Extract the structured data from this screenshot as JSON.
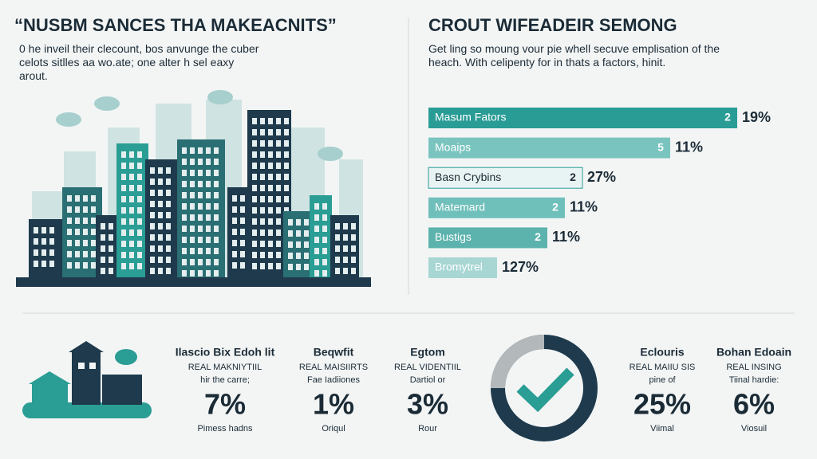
{
  "left": {
    "title": "“NUSBM SANCES THA MAKEACNITS”",
    "description": "0 he inveil their clecount, bos anvunge the cuber celots sitlles aa wo.ate; one alter h sel eaxy arout."
  },
  "right": {
    "title": "CROUT WIFEADEIR SEMONG",
    "description": "Get ling so moung vour pie whell secuve emplisation of the heach. With celipenty for in thats a factors, hinit.",
    "bars": [
      {
        "label": "Masum Fators",
        "badge": "2",
        "value": "19%"
      },
      {
        "label": "Moaips",
        "badge": "5",
        "value": "11%"
      },
      {
        "label": "Basn Crybins",
        "badge": "2",
        "value": "27%"
      },
      {
        "label": "Matemard",
        "badge": "2",
        "value": "11%"
      },
      {
        "label": "Bustigs",
        "badge": "2",
        "value": "11%"
      },
      {
        "label": "Bromytrel",
        "value": "127%"
      }
    ]
  },
  "stats": [
    {
      "title": "Ilascio Bix Edoh lit",
      "subtitle": "REAL MAKNIYTIIL",
      "note": "hir the carre;",
      "value": "7%",
      "footer": "Pimess hadns"
    },
    {
      "title": "Beqwfit",
      "subtitle": "REAL MAISIIRTS",
      "note": "Fae Iadiiones",
      "value": "1%",
      "footer": "Oriqul"
    },
    {
      "title": "Egtom",
      "subtitle": "REAL VIDENTIIL",
      "note": "Dartiol or",
      "value": "3%",
      "footer": "Rour"
    },
    {
      "title": "Eclouris",
      "subtitle": "REAL MAIIU SIS",
      "note": "pine of",
      "value": "25%",
      "footer": "Viimal"
    },
    {
      "title": "Bohan Edoain",
      "subtitle": "REAL INSING",
      "note": "Tiinal hardie:",
      "value": "6%",
      "footer": "Viosuil"
    }
  ]
}
